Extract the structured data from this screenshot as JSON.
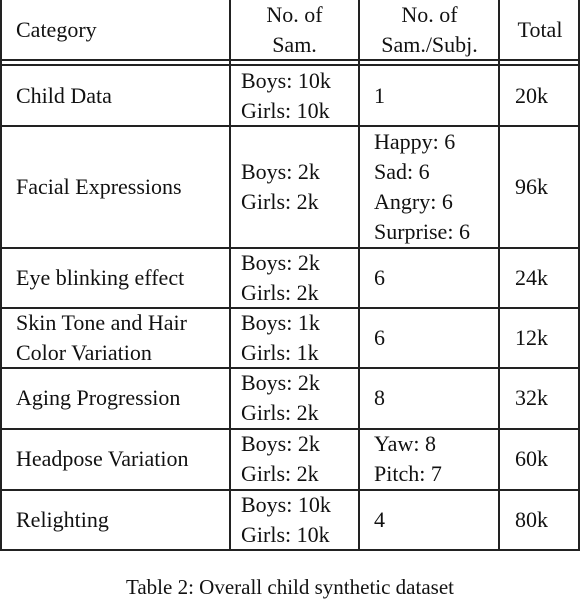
{
  "header": {
    "category": "Category",
    "samples": [
      "No. of",
      "Sam."
    ],
    "samples_per_subject": [
      "No. of",
      "Sam./Subj."
    ],
    "total": "Total"
  },
  "rows": [
    {
      "category": [
        "Child Data"
      ],
      "samples": [
        "Boys: 10k",
        "Girls: 10k"
      ],
      "per_subject": [
        "1"
      ],
      "total": "20k"
    },
    {
      "category": [
        "Facial Expressions"
      ],
      "samples": [
        "Boys: 2k",
        "Girls: 2k"
      ],
      "per_subject": [
        "Happy: 6",
        "Sad: 6",
        "Angry: 6",
        "Surprise: 6"
      ],
      "total": "96k"
    },
    {
      "category": [
        "Eye blinking effect"
      ],
      "samples": [
        "Boys: 2k",
        "Girls: 2k"
      ],
      "per_subject": [
        "6"
      ],
      "total": "24k"
    },
    {
      "category": [
        "Skin Tone and Hair",
        "Color Variation"
      ],
      "samples": [
        "Boys: 1k",
        "Girls: 1k"
      ],
      "per_subject": [
        "6"
      ],
      "total": "12k"
    },
    {
      "category": [
        "Aging Progression"
      ],
      "samples": [
        "Boys: 2k",
        "Girls: 2k"
      ],
      "per_subject": [
        "8"
      ],
      "total": "32k"
    },
    {
      "category": [
        "Headpose Variation"
      ],
      "samples": [
        "Boys: 2k",
        "Girls: 2k"
      ],
      "per_subject": [
        "Yaw: 8",
        "Pitch: 7"
      ],
      "total": "60k"
    },
    {
      "category": [
        "Relighting"
      ],
      "samples": [
        "Boys: 10k",
        "Girls: 10k"
      ],
      "per_subject": [
        "4"
      ],
      "total": "80k"
    }
  ],
  "caption": "Table 2: Overall child synthetic dataset"
}
